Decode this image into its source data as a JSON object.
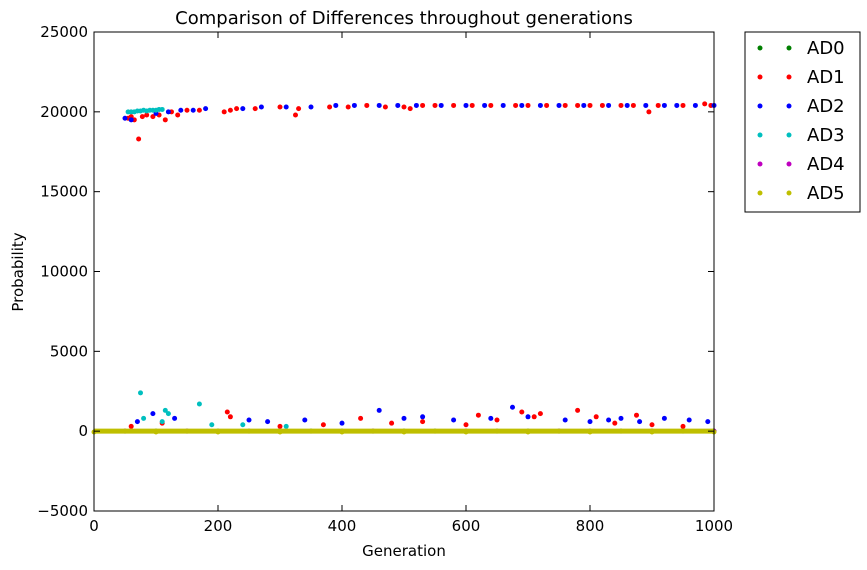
{
  "chart_data": {
    "type": "scatter",
    "title": "Comparison of Differences throughout generations",
    "xlabel": "Generation",
    "ylabel": "Probability",
    "xlim": [
      0,
      1000
    ],
    "ylim": [
      -5000,
      25000
    ],
    "xticks": [
      "0",
      "200",
      "400",
      "600",
      "800",
      "1000"
    ],
    "yticks": [
      "−5000",
      "0",
      "5000",
      "10000",
      "15000",
      "20000",
      "25000"
    ],
    "grid": false,
    "legend_position": "outside-top-right",
    "series": [
      {
        "name": "AD0",
        "color": "#007f00",
        "points": [
          [
            50,
            0
          ],
          [
            100,
            0
          ],
          [
            150,
            0
          ],
          [
            200,
            0
          ],
          [
            250,
            0
          ],
          [
            300,
            0
          ],
          [
            350,
            0
          ],
          [
            400,
            0
          ],
          [
            450,
            0
          ],
          [
            500,
            0
          ],
          [
            550,
            0
          ],
          [
            600,
            0
          ],
          [
            650,
            0
          ],
          [
            700,
            0
          ],
          [
            750,
            0
          ],
          [
            800,
            0
          ],
          [
            850,
            0
          ],
          [
            900,
            0
          ],
          [
            950,
            0
          ],
          [
            1000,
            0
          ]
        ]
      },
      {
        "name": "AD1",
        "color": "#ff0000",
        "points": [
          [
            55,
            19600
          ],
          [
            60,
            19700
          ],
          [
            65,
            19500
          ],
          [
            72,
            18300
          ],
          [
            78,
            19700
          ],
          [
            85,
            19800
          ],
          [
            95,
            19700
          ],
          [
            105,
            19800
          ],
          [
            115,
            19500
          ],
          [
            125,
            20000
          ],
          [
            135,
            19800
          ],
          [
            150,
            20100
          ],
          [
            170,
            20100
          ],
          [
            210,
            20000
          ],
          [
            220,
            20100
          ],
          [
            230,
            20200
          ],
          [
            260,
            20200
          ],
          [
            300,
            20300
          ],
          [
            325,
            19800
          ],
          [
            330,
            20200
          ],
          [
            380,
            20300
          ],
          [
            410,
            20300
          ],
          [
            440,
            20400
          ],
          [
            470,
            20300
          ],
          [
            500,
            20300
          ],
          [
            510,
            20200
          ],
          [
            530,
            20400
          ],
          [
            550,
            20400
          ],
          [
            580,
            20400
          ],
          [
            610,
            20400
          ],
          [
            640,
            20400
          ],
          [
            680,
            20400
          ],
          [
            700,
            20400
          ],
          [
            730,
            20400
          ],
          [
            760,
            20400
          ],
          [
            780,
            20400
          ],
          [
            800,
            20400
          ],
          [
            820,
            20400
          ],
          [
            850,
            20400
          ],
          [
            870,
            20400
          ],
          [
            895,
            20000
          ],
          [
            910,
            20400
          ],
          [
            950,
            20400
          ],
          [
            985,
            20500
          ],
          [
            995,
            20400
          ],
          [
            60,
            300
          ],
          [
            110,
            500
          ],
          [
            215,
            1200
          ],
          [
            220,
            900
          ],
          [
            300,
            300
          ],
          [
            370,
            400
          ],
          [
            430,
            800
          ],
          [
            480,
            500
          ],
          [
            530,
            600
          ],
          [
            600,
            400
          ],
          [
            620,
            1000
          ],
          [
            650,
            700
          ],
          [
            690,
            1200
          ],
          [
            710,
            900
          ],
          [
            720,
            1100
          ],
          [
            780,
            1300
          ],
          [
            810,
            900
          ],
          [
            840,
            500
          ],
          [
            875,
            1000
          ],
          [
            900,
            400
          ],
          [
            950,
            300
          ]
        ]
      },
      {
        "name": "AD2",
        "color": "#0000ff",
        "points": [
          [
            50,
            19600
          ],
          [
            60,
            19500
          ],
          [
            100,
            19900
          ],
          [
            120,
            20000
          ],
          [
            140,
            20100
          ],
          [
            160,
            20100
          ],
          [
            180,
            20200
          ],
          [
            240,
            20200
          ],
          [
            270,
            20300
          ],
          [
            310,
            20300
          ],
          [
            350,
            20300
          ],
          [
            390,
            20400
          ],
          [
            420,
            20400
          ],
          [
            460,
            20400
          ],
          [
            490,
            20400
          ],
          [
            520,
            20400
          ],
          [
            560,
            20400
          ],
          [
            600,
            20400
          ],
          [
            630,
            20400
          ],
          [
            660,
            20400
          ],
          [
            690,
            20400
          ],
          [
            720,
            20400
          ],
          [
            750,
            20400
          ],
          [
            790,
            20400
          ],
          [
            830,
            20400
          ],
          [
            860,
            20400
          ],
          [
            890,
            20400
          ],
          [
            920,
            20400
          ],
          [
            940,
            20400
          ],
          [
            970,
            20400
          ],
          [
            1000,
            20400
          ],
          [
            70,
            600
          ],
          [
            95,
            1100
          ],
          [
            130,
            800
          ],
          [
            250,
            700
          ],
          [
            280,
            600
          ],
          [
            340,
            700
          ],
          [
            400,
            500
          ],
          [
            460,
            1300
          ],
          [
            500,
            800
          ],
          [
            530,
            900
          ],
          [
            580,
            700
          ],
          [
            640,
            800
          ],
          [
            675,
            1500
          ],
          [
            700,
            900
          ],
          [
            760,
            700
          ],
          [
            800,
            600
          ],
          [
            830,
            700
          ],
          [
            850,
            800
          ],
          [
            880,
            600
          ],
          [
            920,
            800
          ],
          [
            960,
            700
          ],
          [
            990,
            600
          ]
        ]
      },
      {
        "name": "AD3",
        "color": "#00bfbf",
        "points": [
          [
            55,
            20000
          ],
          [
            60,
            20000
          ],
          [
            65,
            20000
          ],
          [
            70,
            20050
          ],
          [
            75,
            20050
          ],
          [
            80,
            20100
          ],
          [
            85,
            20050
          ],
          [
            90,
            20100
          ],
          [
            95,
            20100
          ],
          [
            100,
            20100
          ],
          [
            105,
            20150
          ],
          [
            110,
            20150
          ],
          [
            75,
            2400
          ],
          [
            115,
            1300
          ],
          [
            120,
            1100
          ],
          [
            170,
            1700
          ],
          [
            80,
            800
          ],
          [
            110,
            600
          ],
          [
            190,
            400
          ],
          [
            240,
            400
          ],
          [
            310,
            300
          ]
        ]
      },
      {
        "name": "AD4",
        "color": "#bf00bf",
        "points": [
          [
            50,
            0
          ],
          [
            150,
            0
          ],
          [
            300,
            0
          ],
          [
            450,
            0
          ],
          [
            600,
            0
          ],
          [
            750,
            0
          ],
          [
            900,
            0
          ],
          [
            1000,
            0
          ]
        ]
      },
      {
        "name": "AD5",
        "color": "#bfbf00",
        "points": [
          [
            0,
            -50
          ],
          [
            100,
            -50
          ],
          [
            200,
            -50
          ],
          [
            300,
            -50
          ],
          [
            400,
            -50
          ],
          [
            500,
            -50
          ],
          [
            600,
            -50
          ],
          [
            700,
            -50
          ],
          [
            800,
            -50
          ],
          [
            900,
            -50
          ],
          [
            1000,
            -50
          ]
        ]
      }
    ]
  }
}
